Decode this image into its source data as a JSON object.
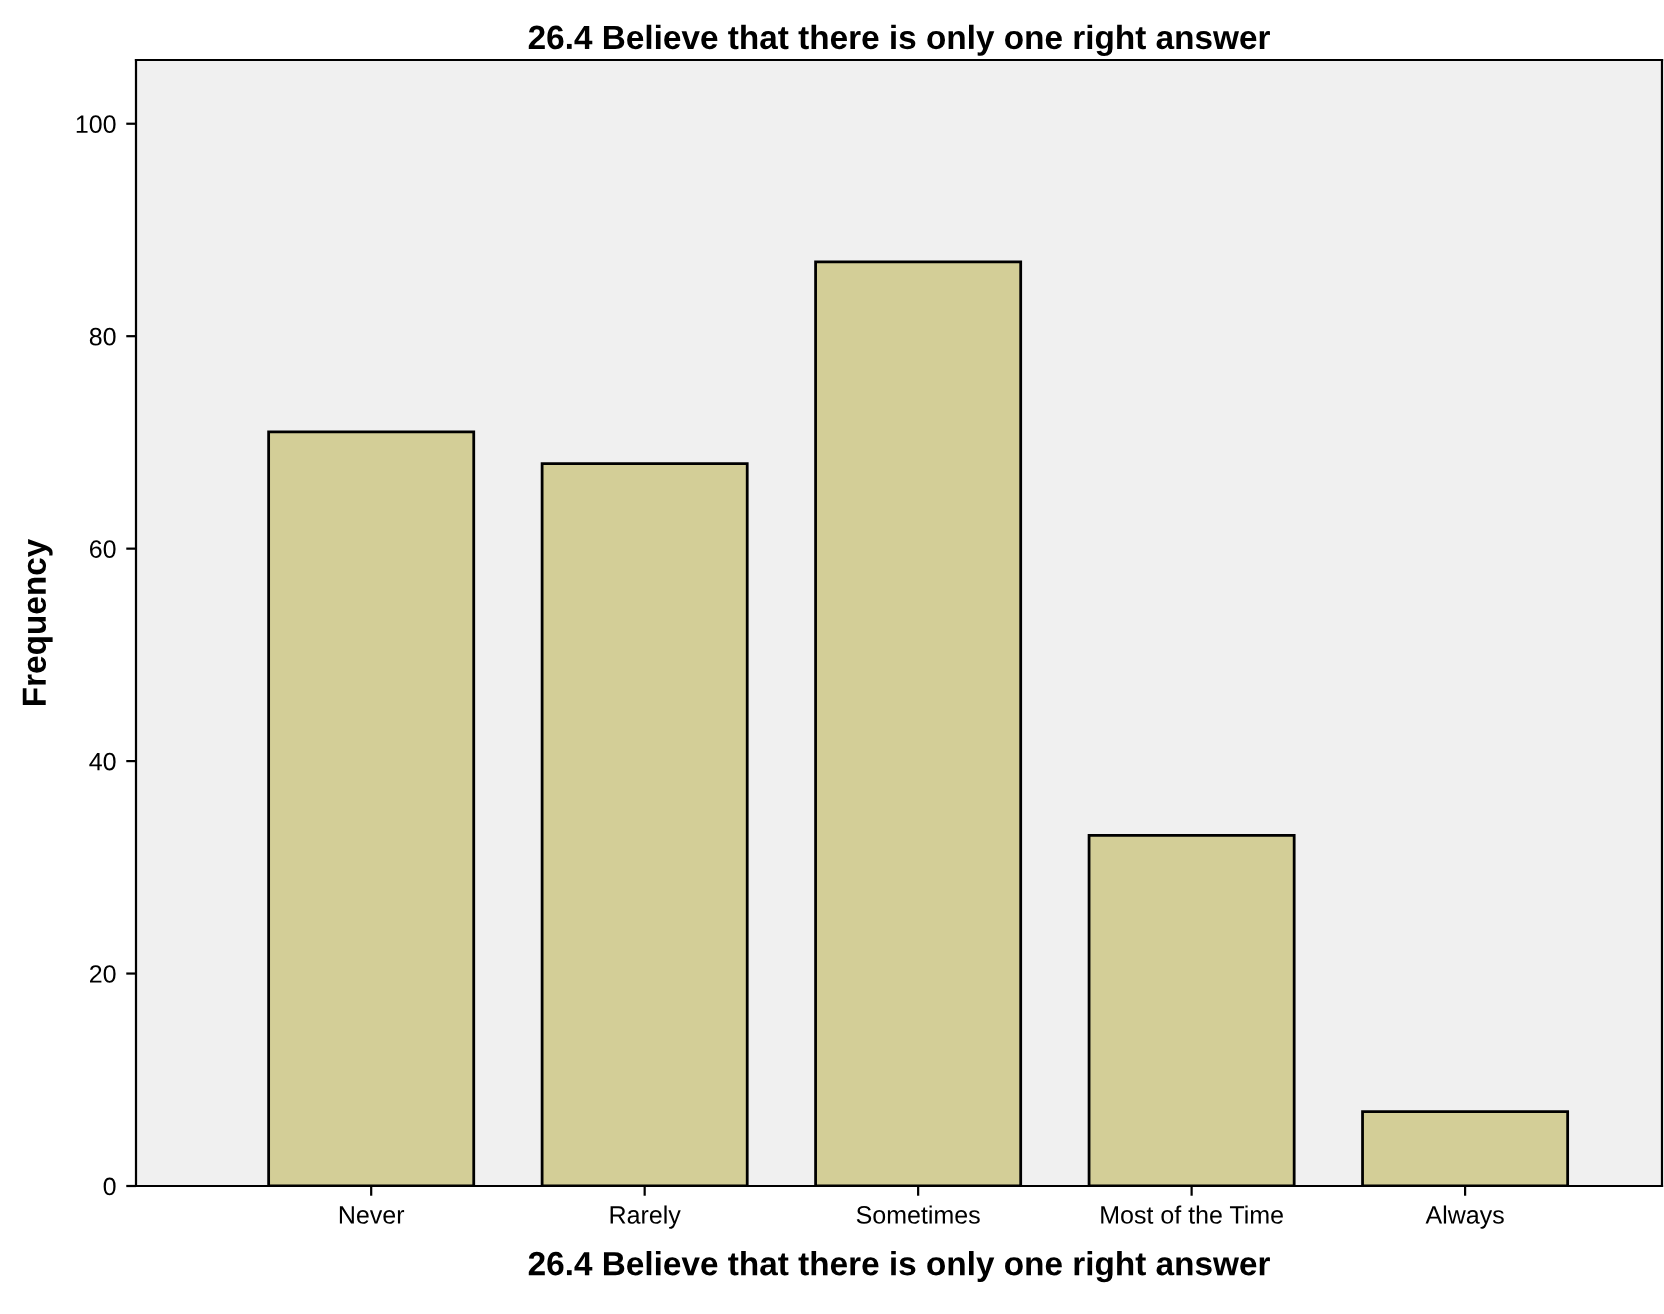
{
  "chart_data": {
    "type": "bar",
    "title": "26.4 Believe that there is only one right answer",
    "xlabel": "26.4 Believe that there is only one right answer",
    "ylabel": "Frequency",
    "categories": [
      "Never",
      "Rarely",
      "Sometimes",
      "Most of the Time",
      "Always"
    ],
    "values": [
      71,
      68,
      87,
      33,
      7
    ],
    "color": "#d3ce97",
    "ylim": [
      0,
      106
    ],
    "yticks": [
      0,
      20,
      40,
      60,
      80,
      100
    ],
    "grid": false,
    "legend": false
  }
}
